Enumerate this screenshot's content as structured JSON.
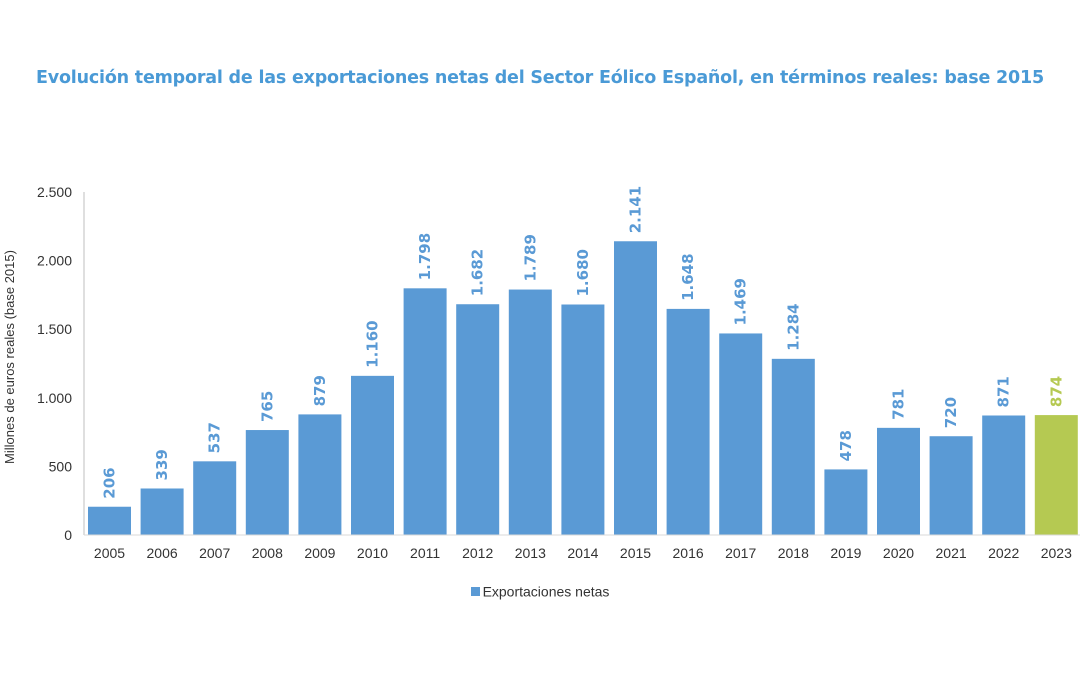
{
  "chart_data": {
    "type": "bar",
    "title": "Evolución temporal de las exportaciones netas del Sector Eólico Español, en términos reales: base 2015",
    "xlabel": "",
    "ylabel": "Millones de euros reales (base 2015)",
    "ylim": [
      0,
      2500
    ],
    "yticks": [
      0,
      500,
      1000,
      1500,
      2000,
      2500
    ],
    "ytick_labels": [
      "0",
      "500",
      "1.000",
      "1.500",
      "2.000",
      "2.500"
    ],
    "categories": [
      "2005",
      "2006",
      "2007",
      "2008",
      "2009",
      "2010",
      "2011",
      "2012",
      "2013",
      "2014",
      "2015",
      "2016",
      "2017",
      "2018",
      "2019",
      "2020",
      "2021",
      "2022",
      "2023"
    ],
    "series": [
      {
        "name": "Exportaciones netas",
        "values": [
          206,
          339,
          537,
          765,
          879,
          1160,
          1798,
          1682,
          1789,
          1680,
          2141,
          1648,
          1469,
          1284,
          478,
          781,
          720,
          871,
          874
        ],
        "labels": [
          "206",
          "339",
          "537",
          "765",
          "879",
          "1.160",
          "1.798",
          "1.682",
          "1.789",
          "1.680",
          "2.141",
          "1.648",
          "1.469",
          "1.284",
          "478",
          "781",
          "720",
          "871",
          "874"
        ]
      }
    ],
    "colors": {
      "default": "#5a9ad5",
      "highlight": "#b5c952",
      "highlight_category": "2023"
    },
    "legend": "bottom-center",
    "grid": false
  }
}
